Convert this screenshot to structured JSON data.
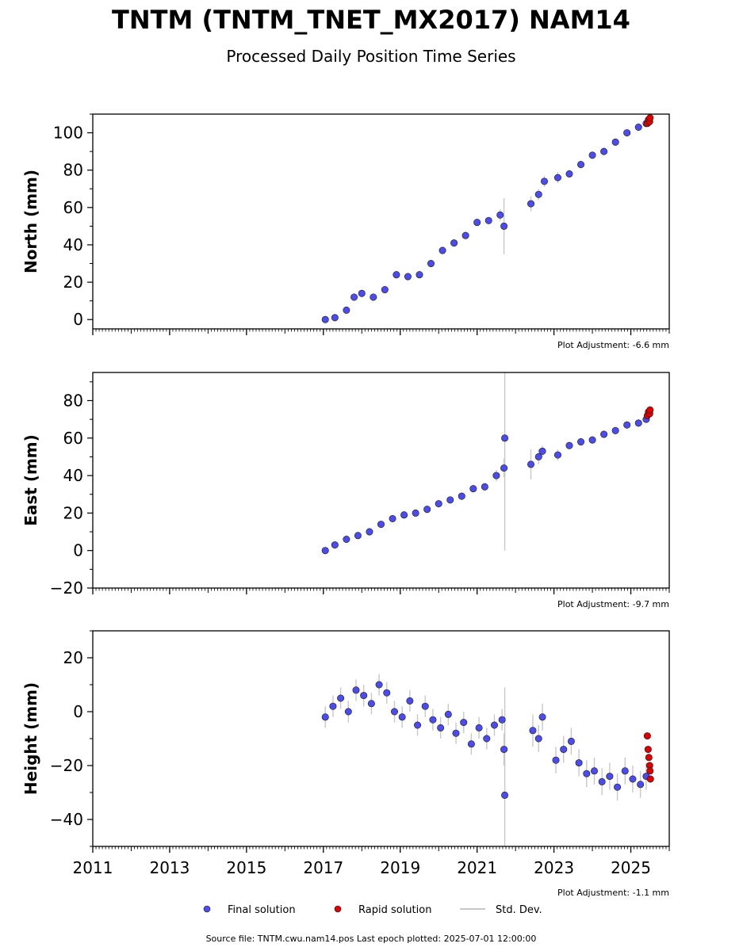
{
  "header": {
    "title": "TNTM (TNTM_TNET_MX2017) NAM14",
    "subtitle": "Processed Daily Position Time Series"
  },
  "legend": {
    "final_label": "Final solution",
    "rapid_label": "Rapid solution",
    "std_label": "Std. Dev."
  },
  "footer": {
    "source": "Source file: TNTM.cwu.nam14.pos  Last epoch plotted: 2025-07-01 12:00:00"
  },
  "colors": {
    "final": "#4b4bf0",
    "rapid": "#e00000",
    "std": "#c8c8c8",
    "marker_edge": "#1a1a1a"
  },
  "chart_data": [
    {
      "type": "scatter",
      "ylabel": "North (mm)",
      "adjustment": "Plot Adjustment: -6.6 mm",
      "xlim": [
        2011,
        2026
      ],
      "ylim": [
        -5,
        110
      ],
      "yticks": [
        0,
        20,
        40,
        60,
        80,
        100
      ],
      "ytick_labels": [
        "0",
        "20",
        "40",
        "60",
        "80",
        "100"
      ],
      "series": [
        {
          "role": "final",
          "x": [
            2017.05,
            2017.3,
            2017.6,
            2017.8,
            2018.0,
            2018.3,
            2018.6,
            2018.9,
            2019.2,
            2019.5,
            2019.8,
            2020.1,
            2020.4,
            2020.7,
            2021.0,
            2021.3,
            2021.6,
            2021.7,
            2022.4,
            2022.6,
            2022.75,
            2023.1,
            2023.4,
            2023.7,
            2024.0,
            2024.3,
            2024.6,
            2024.9,
            2025.2,
            2025.4
          ],
          "y": [
            0,
            1,
            5,
            12,
            14,
            12,
            16,
            24,
            23,
            24,
            30,
            37,
            41,
            45,
            52,
            53,
            56,
            50,
            62,
            67,
            74,
            76,
            78,
            83,
            88,
            90,
            95,
            100,
            103,
            105
          ],
          "err": [
            2,
            2,
            2,
            2,
            2,
            2,
            2,
            2,
            2,
            2,
            2,
            2,
            2,
            2,
            2,
            2,
            3,
            15,
            4,
            3,
            3,
            3,
            2,
            2,
            2,
            2,
            2,
            2,
            2,
            2
          ]
        },
        {
          "role": "rapid",
          "x": [
            2025.43,
            2025.46,
            2025.49,
            2025.5
          ],
          "y": [
            105,
            107,
            106,
            108
          ]
        }
      ]
    },
    {
      "type": "scatter",
      "ylabel": "East (mm)",
      "adjustment": "Plot Adjustment: -9.7 mm",
      "xlim": [
        2011,
        2026
      ],
      "ylim": [
        -20,
        95
      ],
      "yticks": [
        -20,
        0,
        20,
        40,
        60,
        80
      ],
      "ytick_labels": [
        "−20",
        "0",
        "20",
        "40",
        "60",
        "80"
      ],
      "series": [
        {
          "role": "final",
          "x": [
            2017.05,
            2017.3,
            2017.6,
            2017.9,
            2018.2,
            2018.5,
            2018.8,
            2019.1,
            2019.4,
            2019.7,
            2020.0,
            2020.3,
            2020.6,
            2020.9,
            2021.2,
            2021.5,
            2021.7,
            2021.72,
            2022.4,
            2022.6,
            2022.7,
            2023.1,
            2023.4,
            2023.7,
            2024.0,
            2024.3,
            2024.6,
            2024.9,
            2025.2,
            2025.4
          ],
          "y": [
            0,
            3,
            6,
            8,
            10,
            14,
            17,
            19,
            20,
            22,
            25,
            27,
            29,
            33,
            34,
            40,
            44,
            60,
            46,
            50,
            53,
            51,
            56,
            58,
            59,
            62,
            64,
            67,
            68,
            70
          ],
          "err": [
            2,
            2,
            2,
            2,
            2,
            2,
            2,
            2,
            2,
            2,
            2,
            2,
            2,
            2,
            2,
            3,
            5,
            60,
            8,
            4,
            3,
            3,
            2,
            2,
            2,
            2,
            2,
            2,
            2,
            2
          ]
        },
        {
          "role": "rapid",
          "x": [
            2025.43,
            2025.46,
            2025.49,
            2025.5
          ],
          "y": [
            72,
            74,
            73,
            75
          ]
        }
      ]
    },
    {
      "type": "scatter",
      "ylabel": "Height (mm)",
      "adjustment": "Plot Adjustment: -1.1 mm",
      "xlim": [
        2011,
        2026
      ],
      "ylim": [
        -50,
        30
      ],
      "yticks": [
        -40,
        -20,
        0,
        20
      ],
      "ytick_labels": [
        "−40",
        "−20",
        "0",
        "20"
      ],
      "xticks": [
        2011,
        2013,
        2015,
        2017,
        2019,
        2021,
        2023,
        2025
      ],
      "xtick_labels": [
        "2011",
        "2013",
        "2015",
        "2017",
        "2019",
        "2021",
        "2023",
        "2025"
      ],
      "series": [
        {
          "role": "final",
          "x": [
            2017.05,
            2017.25,
            2017.45,
            2017.65,
            2017.85,
            2018.05,
            2018.25,
            2018.45,
            2018.65,
            2018.85,
            2019.05,
            2019.25,
            2019.45,
            2019.65,
            2019.85,
            2020.05,
            2020.25,
            2020.45,
            2020.65,
            2020.85,
            2021.05,
            2021.25,
            2021.45,
            2021.65,
            2021.7,
            2021.72,
            2022.45,
            2022.6,
            2022.7,
            2023.05,
            2023.25,
            2023.45,
            2023.65,
            2023.85,
            2024.05,
            2024.25,
            2024.45,
            2024.65,
            2024.85,
            2025.05,
            2025.25,
            2025.4
          ],
          "y": [
            -2,
            2,
            5,
            0,
            8,
            6,
            3,
            10,
            7,
            0,
            -2,
            4,
            -5,
            2,
            -3,
            -6,
            -1,
            -8,
            -4,
            -12,
            -6,
            -10,
            -5,
            -3,
            -14,
            -31,
            -7,
            -10,
            -2,
            -18,
            -14,
            -11,
            -19,
            -23,
            -22,
            -26,
            -24,
            -28,
            -22,
            -25,
            -27,
            -24
          ],
          "err": [
            4,
            4,
            4,
            4,
            4,
            4,
            4,
            4,
            4,
            4,
            4,
            4,
            4,
            4,
            4,
            4,
            4,
            4,
            4,
            4,
            4,
            4,
            4,
            4,
            6,
            40,
            6,
            5,
            5,
            5,
            5,
            5,
            5,
            5,
            5,
            5,
            5,
            5,
            5,
            5,
            5,
            5
          ]
        },
        {
          "role": "rapid",
          "x": [
            2025.43,
            2025.45,
            2025.47,
            2025.49,
            2025.5,
            2025.51
          ],
          "y": [
            -9,
            -14,
            -17,
            -20,
            -22,
            -25
          ]
        }
      ]
    }
  ]
}
